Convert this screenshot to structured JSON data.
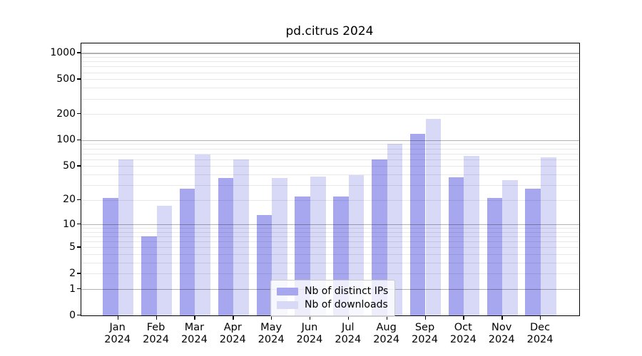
{
  "chart_data": {
    "type": "bar",
    "title": "pd.citrus 2024",
    "categories": [
      "Jan",
      "Feb",
      "Mar",
      "Apr",
      "May",
      "Jun",
      "Jul",
      "Aug",
      "Sep",
      "Oct",
      "Nov",
      "Dec"
    ],
    "category_year": "2024",
    "series": [
      {
        "name": "Nb of distinct IPs",
        "color": "#a7a7ef",
        "values": [
          21,
          7,
          27,
          36,
          13,
          22,
          22,
          60,
          117,
          37,
          21,
          27
        ]
      },
      {
        "name": "Nb of downloads",
        "color": "#d8d8f7",
        "values": [
          60,
          17,
          68,
          60,
          36,
          38,
          39,
          90,
          175,
          66,
          34,
          63
        ]
      }
    ],
    "y_ticks": [
      0,
      1,
      2,
      5,
      10,
      20,
      50,
      100,
      200,
      500,
      1000
    ],
    "y_scale": "log1p",
    "ylim": [
      0,
      1286
    ],
    "xlabel": "",
    "ylabel": "",
    "grid": true,
    "legend_position": "lower center",
    "colors": {
      "bar_dark": "#a7a7ef",
      "bar_light": "#d8d8f7",
      "major_grid": "#b3b3b3",
      "minor_grid": "#e9e9e9",
      "spine": "#000000"
    }
  }
}
